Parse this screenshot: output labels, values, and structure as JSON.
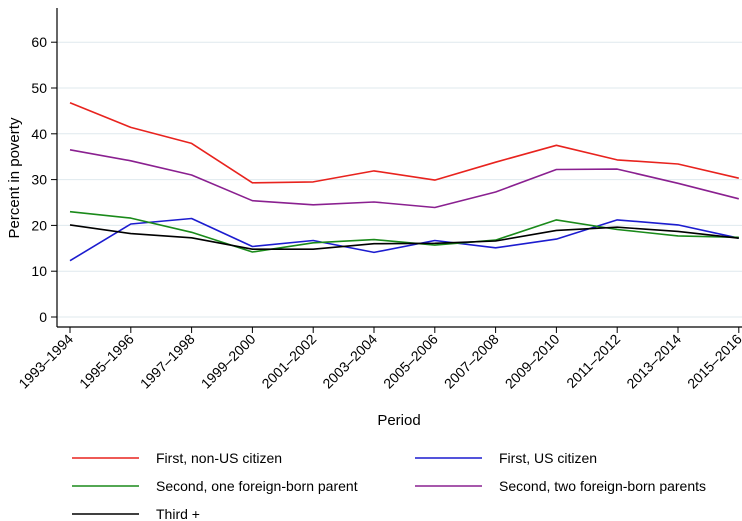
{
  "chart_data": {
    "type": "line",
    "title": "",
    "xlabel": "Period",
    "ylabel": "Percent in poverty",
    "ylim": [
      0,
      65
    ],
    "yticks": [
      0,
      10,
      20,
      30,
      40,
      50,
      60
    ],
    "grid": true,
    "legend_position": "bottom",
    "categories": [
      "1993–1994",
      "1995–1996",
      "1997–1998",
      "1999–2000",
      "2001–2002",
      "2003–2004",
      "2005–2006",
      "2007–2008",
      "2009–2010",
      "2011–2012",
      "2013–2014",
      "2015–2016"
    ],
    "series": [
      {
        "name": "First, non-US citizen",
        "color": "#e8231e",
        "values": [
          46.8,
          41.4,
          37.9,
          29.3,
          29.5,
          31.9,
          29.9,
          33.8,
          37.5,
          34.3,
          33.4,
          30.3
        ]
      },
      {
        "name": "First, US citizen",
        "color": "#1c1ccf",
        "values": [
          12.3,
          20.3,
          21.5,
          15.4,
          16.7,
          14.1,
          16.7,
          15.1,
          17.0,
          21.2,
          20.1,
          17.2
        ]
      },
      {
        "name": "Second, one foreign-born parent",
        "color": "#1a8a1a",
        "values": [
          23.0,
          21.6,
          18.5,
          14.2,
          16.2,
          16.9,
          15.7,
          16.8,
          21.2,
          19.1,
          17.7,
          17.4
        ]
      },
      {
        "name": "Second, two foreign-born parents",
        "color": "#8a2090",
        "values": [
          36.5,
          34.1,
          31.0,
          25.4,
          24.5,
          25.1,
          23.9,
          27.3,
          32.2,
          32.3,
          29.2,
          25.8
        ]
      },
      {
        "name": "Third +",
        "color": "#000000",
        "values": [
          20.1,
          18.2,
          17.3,
          14.8,
          14.8,
          16.0,
          16.1,
          16.6,
          18.9,
          19.6,
          18.7,
          17.2
        ]
      }
    ]
  }
}
